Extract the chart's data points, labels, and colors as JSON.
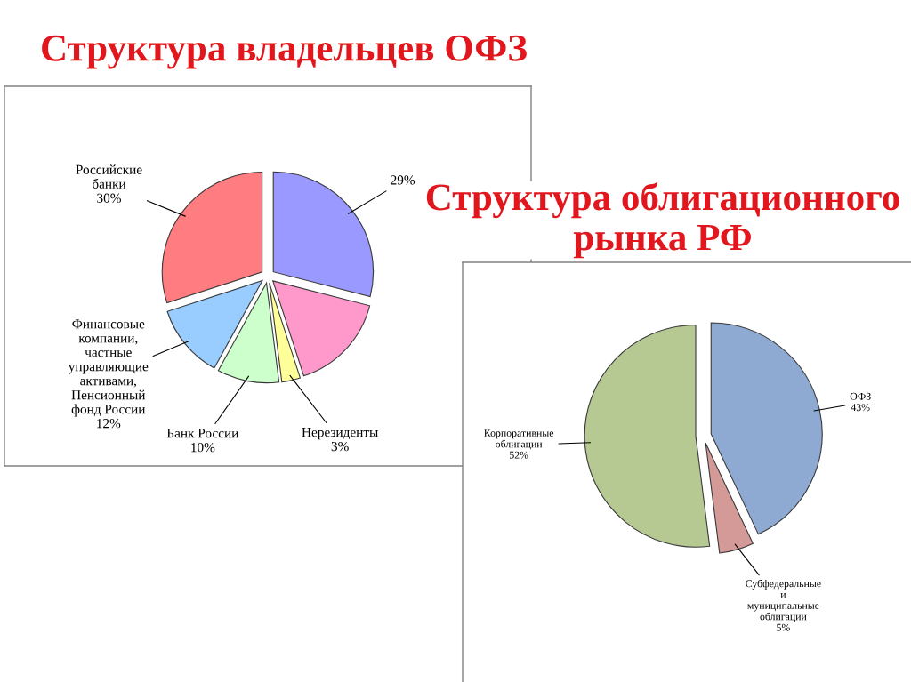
{
  "chart_data": [
    {
      "type": "pie",
      "title": "Структура владельцев ОФЗ",
      "categories": [
        null,
        null,
        "Нерезиденты",
        "Банк России",
        "Финансовые\nкомпании,\nчастные\nуправляющие\nактивами,\nПенсионный\nфонд России",
        "Российские\nбанки"
      ],
      "values": [
        29,
        16,
        3,
        10,
        12,
        30
      ],
      "value_labels": [
        "29%",
        null,
        "3%",
        "10%",
        "12%",
        "30%"
      ],
      "colors": [
        "#9999ff",
        "#ff99cc",
        "#ffff99",
        "#ccffcc",
        "#99ccff",
        "#ff7c80"
      ]
    },
    {
      "type": "pie",
      "title": "Структура облигационного рынка РФ",
      "categories": [
        "ОФЗ",
        "Субфедеральные\nи\nмуниципальные\nоблигации",
        "Корпоративные\nоблигации"
      ],
      "values": [
        43,
        5,
        52
      ],
      "value_labels": [
        "43%",
        "5%",
        "52%"
      ],
      "colors": [
        "#8eaad2",
        "#d49a98",
        "#b6c992"
      ]
    }
  ]
}
